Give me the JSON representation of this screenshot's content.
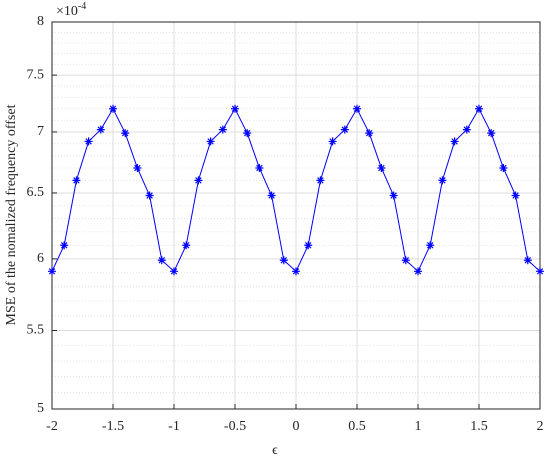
{
  "chart_data": {
    "type": "line",
    "xlabel": "ϵ",
    "ylabel": "MSE of the nomalized frequency offset",
    "y_multiplier": "×10",
    "y_multiplier_exponent": "-4",
    "x": [
      -2,
      -1.9,
      -1.8,
      -1.7,
      -1.6,
      -1.5,
      -1.4,
      -1.3,
      -1.2,
      -1.1,
      -1,
      -0.9,
      -0.8,
      -0.7,
      -0.6,
      -0.5,
      -0.4,
      -0.3,
      -0.2,
      -0.1,
      0,
      0.1,
      0.2,
      0.3,
      0.4,
      0.5,
      0.6,
      0.7,
      0.8,
      0.9,
      1,
      1.1,
      1.2,
      1.3,
      1.4,
      1.5,
      1.6,
      1.7,
      1.8,
      1.9,
      2
    ],
    "series": [
      {
        "color": "#0000ff",
        "values": [
          5.91,
          6.1,
          6.6,
          6.92,
          7.02,
          7.2,
          6.99,
          6.7,
          6.48,
          5.99,
          5.91,
          6.1,
          6.6,
          6.92,
          7.02,
          7.2,
          6.99,
          6.7,
          6.48,
          5.99,
          5.91,
          6.1,
          6.6,
          6.92,
          7.02,
          7.2,
          6.99,
          6.7,
          6.48,
          5.99,
          5.91,
          6.1,
          6.6,
          6.92,
          7.02,
          7.2,
          6.99,
          6.7,
          6.48,
          5.99,
          5.91
        ]
      }
    ],
    "xlim": [
      -2,
      2
    ],
    "xticks": [
      -2,
      -1.5,
      -1,
      -0.5,
      0,
      0.5,
      1,
      1.5,
      2
    ],
    "ylim": [
      5,
      8
    ],
    "yticks": [
      5,
      5.5,
      6,
      6.5,
      7,
      7.5,
      8
    ],
    "yminorticks": [
      5.1,
      5.2,
      5.3,
      5.4,
      5.6,
      5.7,
      5.8,
      5.9,
      6.1,
      6.2,
      6.3,
      6.4,
      6.6,
      6.7,
      6.8,
      6.9,
      7.1,
      7.2,
      7.3,
      7.4,
      7.6,
      7.7,
      7.8,
      7.9
    ],
    "yscale": "log",
    "grid": true
  }
}
